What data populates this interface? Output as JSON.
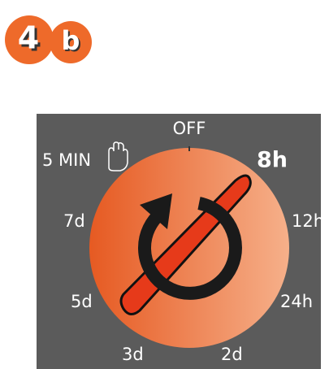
{
  "badges": [
    "4",
    "b"
  ],
  "dial": {
    "labels": {
      "off": "OFF",
      "five_min": "5 MIN",
      "eight_h": "8h",
      "seven_d": "7d",
      "twelve_h": "12h",
      "five_d": "5d",
      "twenty_four_h": "24h",
      "three_d": "3d",
      "two_d": "2d"
    }
  }
}
